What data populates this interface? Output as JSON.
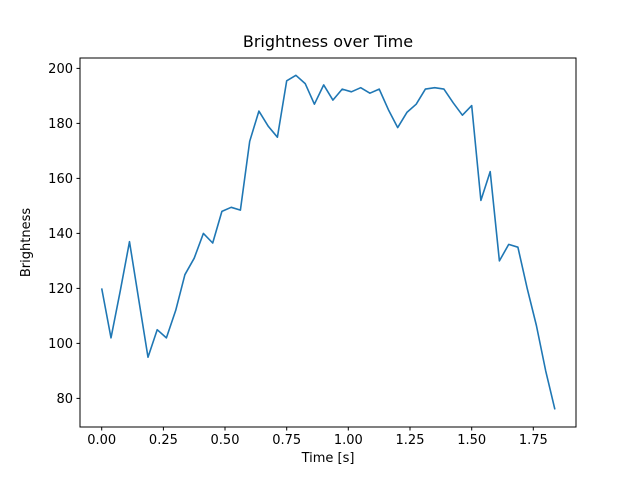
{
  "chart_data": {
    "type": "line",
    "title": "Brightness over Time",
    "xlabel": "Time [s]",
    "ylabel": "Brightness",
    "grid": false,
    "legend": null,
    "xlim": [
      -0.088,
      1.923
    ],
    "ylim": [
      69.6,
      203.8
    ],
    "xticks": [
      0.0,
      0.25,
      0.5,
      0.75,
      1.0,
      1.25,
      1.5,
      1.75
    ],
    "xtick_labels": [
      "0.00",
      "0.25",
      "0.50",
      "0.75",
      "1.00",
      "1.25",
      "1.50",
      "1.75"
    ],
    "yticks": [
      80,
      100,
      120,
      140,
      160,
      180,
      200
    ],
    "ytick_labels": [
      "80",
      "100",
      "120",
      "140",
      "160",
      "180",
      "200"
    ],
    "series": [
      {
        "name": "brightness",
        "color": "#1f77b4",
        "x": [
          0.0,
          0.0375,
          0.075,
          0.1125,
          0.15,
          0.1875,
          0.225,
          0.2625,
          0.3,
          0.3375,
          0.375,
          0.4125,
          0.45,
          0.4875,
          0.525,
          0.5625,
          0.6,
          0.6375,
          0.675,
          0.7125,
          0.75,
          0.7875,
          0.825,
          0.8625,
          0.9,
          0.9375,
          0.975,
          1.0125,
          1.05,
          1.0875,
          1.125,
          1.1625,
          1.2,
          1.2375,
          1.275,
          1.3125,
          1.35,
          1.3875,
          1.425,
          1.4625,
          1.5,
          1.5375,
          1.575,
          1.6125,
          1.65,
          1.6875,
          1.725,
          1.7625,
          1.8,
          1.8375
        ],
        "y": [
          120,
          102,
          119,
          137,
          116,
          95,
          105,
          102,
          112,
          125,
          131,
          140,
          136.5,
          148,
          149.5,
          148.5,
          173.5,
          184.5,
          179,
          175,
          195.5,
          197.5,
          194.5,
          187,
          194,
          188.5,
          192.5,
          191.5,
          193,
          191,
          192.5,
          185,
          178.5,
          184,
          187,
          192.5,
          193,
          192.5,
          187.5,
          183,
          186.5,
          152,
          162.5,
          130,
          136,
          135,
          120,
          106.5,
          90,
          76
        ]
      }
    ]
  }
}
